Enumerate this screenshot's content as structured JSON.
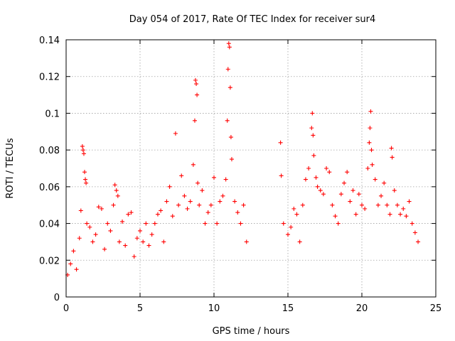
{
  "chart_data": {
    "type": "scatter",
    "title": "Day 054 of 2017, Rate Of TEC Index for receiver sur4",
    "xlabel": "GPS time / hours",
    "ylabel": "ROTI / TECUs",
    "xlim": [
      0,
      25
    ],
    "ylim": [
      0,
      0.14
    ],
    "x_ticks": [
      0,
      5,
      10,
      15,
      20,
      25
    ],
    "y_ticks": [
      0,
      0.02,
      0.04,
      0.06,
      0.08,
      0.1,
      0.12,
      0.14
    ],
    "x_tick_labels": [
      "0",
      "5",
      "10",
      "15",
      "20",
      "25"
    ],
    "y_tick_labels": [
      "0",
      "0.02",
      "0.04",
      "0.06",
      "0.08",
      "0.1",
      "0.12",
      "0.14"
    ],
    "grid": true,
    "marker": "plus",
    "point_color": "#ff0000",
    "series": [
      {
        "points": [
          [
            0.1,
            0.012
          ],
          [
            0.3,
            0.018
          ],
          [
            0.5,
            0.025
          ],
          [
            0.7,
            0.015
          ],
          [
            0.9,
            0.032
          ],
          [
            1.0,
            0.047
          ],
          [
            1.1,
            0.082
          ],
          [
            1.15,
            0.08
          ],
          [
            1.2,
            0.078
          ],
          [
            1.25,
            0.068
          ],
          [
            1.3,
            0.064
          ],
          [
            1.35,
            0.062
          ],
          [
            1.4,
            0.04
          ],
          [
            1.6,
            0.038
          ],
          [
            1.8,
            0.03
          ],
          [
            2.0,
            0.034
          ],
          [
            2.2,
            0.049
          ],
          [
            2.4,
            0.048
          ],
          [
            2.6,
            0.026
          ],
          [
            2.8,
            0.04
          ],
          [
            3.0,
            0.036
          ],
          [
            3.2,
            0.05
          ],
          [
            3.3,
            0.061
          ],
          [
            3.4,
            0.058
          ],
          [
            3.5,
            0.055
          ],
          [
            3.6,
            0.03
          ],
          [
            3.8,
            0.041
          ],
          [
            4.0,
            0.028
          ],
          [
            4.2,
            0.045
          ],
          [
            4.4,
            0.046
          ],
          [
            4.6,
            0.022
          ],
          [
            4.8,
            0.032
          ],
          [
            5.0,
            0.036
          ],
          [
            5.2,
            0.03
          ],
          [
            5.4,
            0.04
          ],
          [
            5.6,
            0.028
          ],
          [
            5.8,
            0.034
          ],
          [
            6.0,
            0.04
          ],
          [
            6.2,
            0.045
          ],
          [
            6.4,
            0.047
          ],
          [
            6.6,
            0.03
          ],
          [
            6.8,
            0.052
          ],
          [
            7.0,
            0.06
          ],
          [
            7.2,
            0.044
          ],
          [
            7.4,
            0.089
          ],
          [
            7.6,
            0.05
          ],
          [
            7.8,
            0.066
          ],
          [
            8.0,
            0.055
          ],
          [
            8.2,
            0.048
          ],
          [
            8.4,
            0.052
          ],
          [
            8.6,
            0.072
          ],
          [
            8.7,
            0.096
          ],
          [
            8.75,
            0.118
          ],
          [
            8.8,
            0.116
          ],
          [
            8.85,
            0.11
          ],
          [
            8.9,
            0.062
          ],
          [
            9.0,
            0.05
          ],
          [
            9.2,
            0.058
          ],
          [
            9.4,
            0.04
          ],
          [
            9.6,
            0.046
          ],
          [
            9.8,
            0.05
          ],
          [
            10.0,
            0.065
          ],
          [
            10.2,
            0.04
          ],
          [
            10.4,
            0.052
          ],
          [
            10.6,
            0.055
          ],
          [
            10.8,
            0.064
          ],
          [
            10.9,
            0.096
          ],
          [
            10.95,
            0.124
          ],
          [
            11.0,
            0.138
          ],
          [
            11.05,
            0.136
          ],
          [
            11.1,
            0.114
          ],
          [
            11.15,
            0.087
          ],
          [
            11.2,
            0.075
          ],
          [
            11.4,
            0.052
          ],
          [
            11.6,
            0.046
          ],
          [
            11.8,
            0.04
          ],
          [
            12.0,
            0.05
          ],
          [
            12.2,
            0.03
          ],
          [
            14.5,
            0.084
          ],
          [
            14.55,
            0.066
          ],
          [
            14.7,
            0.04
          ],
          [
            15.0,
            0.034
          ],
          [
            15.2,
            0.038
          ],
          [
            15.4,
            0.048
          ],
          [
            15.6,
            0.045
          ],
          [
            15.8,
            0.03
          ],
          [
            16.0,
            0.05
          ],
          [
            16.2,
            0.064
          ],
          [
            16.4,
            0.07
          ],
          [
            16.6,
            0.092
          ],
          [
            16.65,
            0.1
          ],
          [
            16.7,
            0.088
          ],
          [
            16.75,
            0.077
          ],
          [
            16.9,
            0.065
          ],
          [
            17.0,
            0.06
          ],
          [
            17.2,
            0.058
          ],
          [
            17.4,
            0.056
          ],
          [
            17.6,
            0.07
          ],
          [
            17.8,
            0.068
          ],
          [
            18.0,
            0.05
          ],
          [
            18.2,
            0.044
          ],
          [
            18.4,
            0.04
          ],
          [
            18.6,
            0.056
          ],
          [
            18.8,
            0.062
          ],
          [
            19.0,
            0.068
          ],
          [
            19.2,
            0.052
          ],
          [
            19.4,
            0.058
          ],
          [
            19.6,
            0.045
          ],
          [
            19.8,
            0.056
          ],
          [
            20.0,
            0.05
          ],
          [
            20.2,
            0.048
          ],
          [
            20.4,
            0.07
          ],
          [
            20.5,
            0.084
          ],
          [
            20.55,
            0.092
          ],
          [
            20.6,
            0.101
          ],
          [
            20.65,
            0.08
          ],
          [
            20.7,
            0.072
          ],
          [
            20.9,
            0.064
          ],
          [
            21.1,
            0.05
          ],
          [
            21.3,
            0.055
          ],
          [
            21.5,
            0.062
          ],
          [
            21.7,
            0.05
          ],
          [
            21.9,
            0.045
          ],
          [
            22.0,
            0.081
          ],
          [
            22.05,
            0.076
          ],
          [
            22.2,
            0.058
          ],
          [
            22.4,
            0.05
          ],
          [
            22.6,
            0.045
          ],
          [
            22.8,
            0.048
          ],
          [
            23.0,
            0.044
          ],
          [
            23.2,
            0.052
          ],
          [
            23.4,
            0.04
          ],
          [
            23.6,
            0.035
          ],
          [
            23.8,
            0.03
          ]
        ]
      }
    ]
  }
}
